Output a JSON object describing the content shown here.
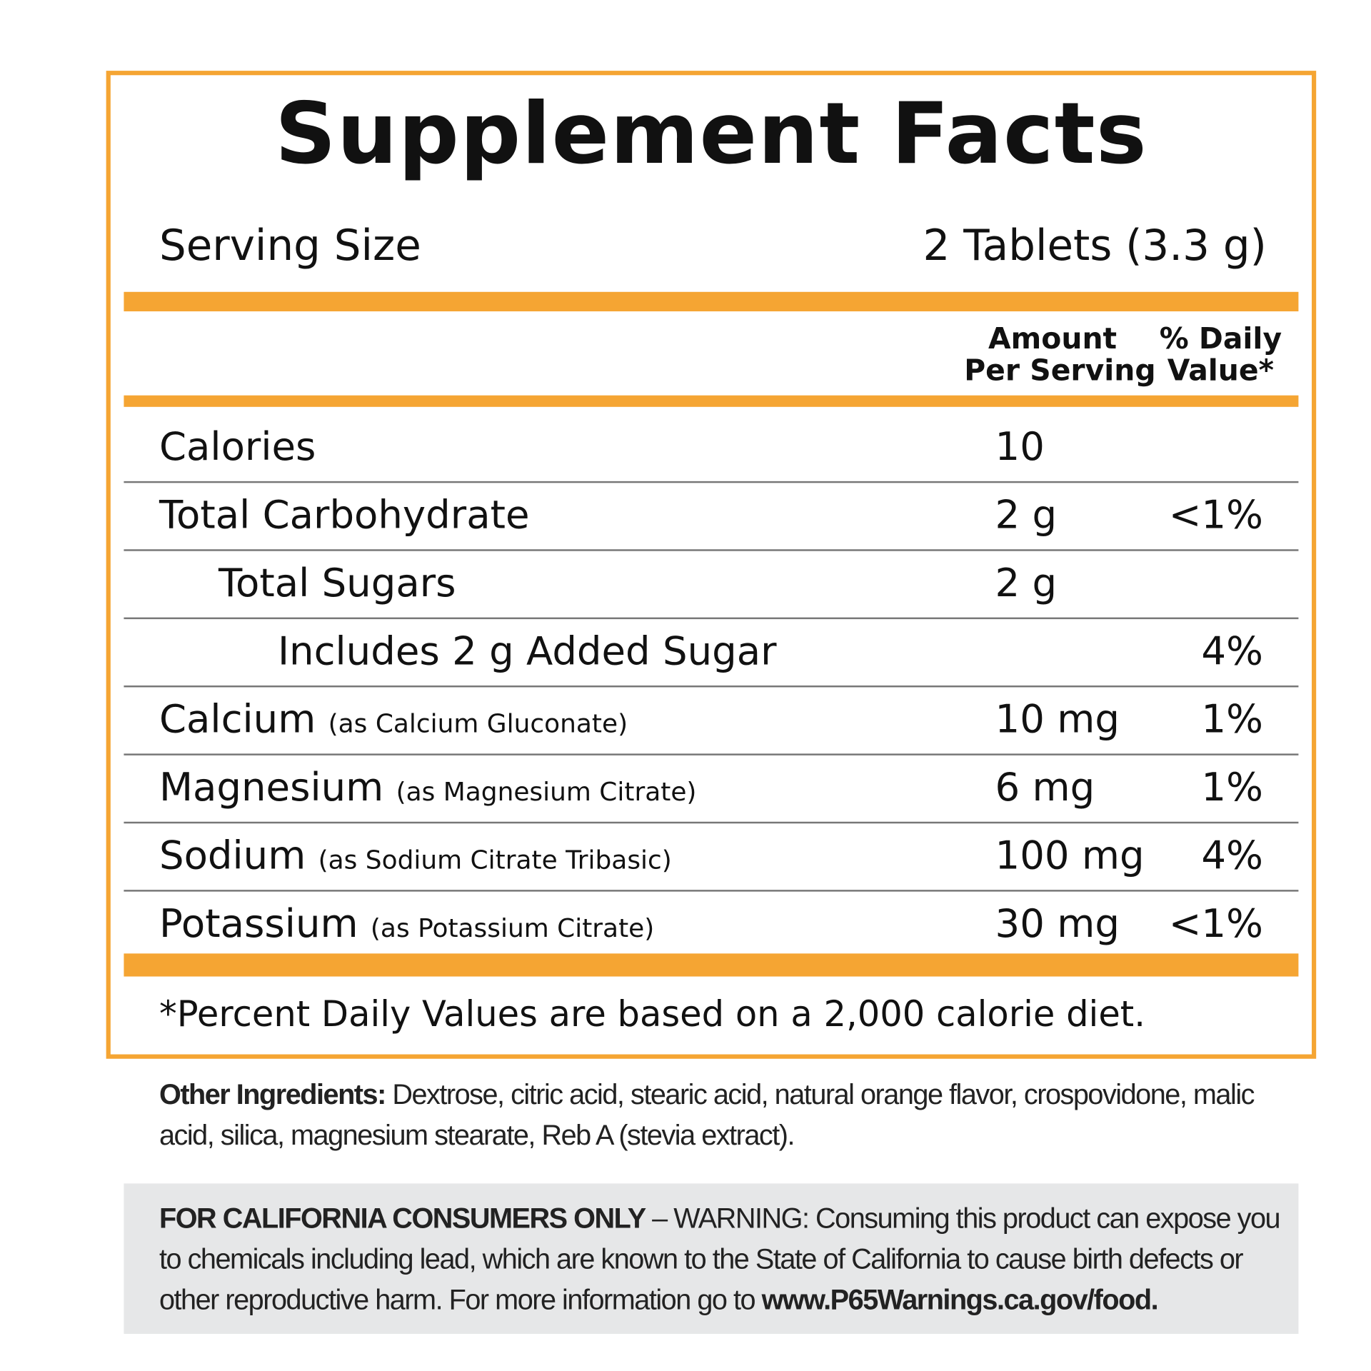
{
  "title": "Supplement Facts",
  "serving": {
    "label": "Serving Size",
    "value": "2 Tablets (3.3 g)"
  },
  "columns": {
    "amount": [
      "Amount",
      "Per Serving"
    ],
    "daily_value": [
      "% Daily",
      "Value*"
    ]
  },
  "rows": [
    {
      "name": "Calories",
      "amount": "10"
    },
    {
      "name": "Total Carbohydrate",
      "amount": "2 g",
      "daily_value": "<1%"
    },
    {
      "name": "Total Sugars",
      "amount": "2 g"
    },
    {
      "name": "Includes 2 g Added Sugar",
      "daily_value": "4%"
    },
    {
      "name": "Calcium",
      "detail": "(as Calcium Gluconate)",
      "amount": "10 mg",
      "daily_value": "1%"
    },
    {
      "name": "Magnesium",
      "detail": "(as Magnesium Citrate)",
      "amount": "6 mg",
      "daily_value": "1%"
    },
    {
      "name": "Sodium",
      "detail": "(as Sodium Citrate Tribasic)",
      "amount": "100 mg",
      "daily_value": "4%"
    },
    {
      "name": "Potassium",
      "detail": "(as Potassium Citrate)",
      "amount": "30 mg",
      "daily_value": "<1%"
    }
  ],
  "footnote": "*Percent Daily Values are based on a 2,000 calorie diet.",
  "other_ingredients": {
    "label": "Other Ingredients:",
    "text": " Dextrose, citric acid, stearic acid, natural orange flavor, crospovidone, malic acid, silica, magnesium stearate, Reb A (stevia extract)."
  },
  "warning": {
    "label": "FOR CALIFORNIA CONSUMERS ONLY",
    "text": " – WARNING: Consuming this product can expose you to chemicals including lead, which are known to the State of California to cause birth defects or other reproductive harm. For more information go to ",
    "link": "www.P65Warnings.ca.gov/food."
  }
}
